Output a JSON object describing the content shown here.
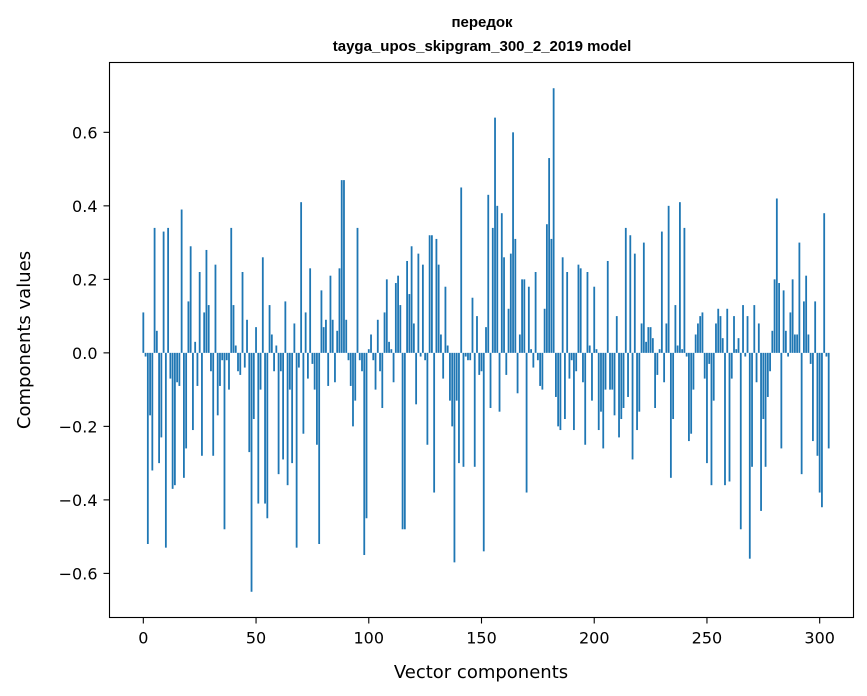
{
  "chart_data": {
    "type": "bar",
    "title_line1": "передок",
    "title_line2": "tayga_upos_skipgram_300_2_2019 model",
    "xlabel": "Vector components",
    "ylabel": "Components values",
    "xlim": [
      -15,
      315
    ],
    "ylim": [
      -0.72,
      0.79
    ],
    "xticks": [
      0,
      50,
      100,
      150,
      200,
      250,
      300
    ],
    "xtick_labels": [
      "0",
      "50",
      "100",
      "150",
      "200",
      "250",
      "300"
    ],
    "yticks": [
      -0.6,
      -0.4,
      -0.2,
      0.0,
      0.2,
      0.4,
      0.6
    ],
    "ytick_labels": [
      "−0.6",
      "−0.4",
      "−0.2",
      "0.0",
      "0.2",
      "0.4",
      "0.6"
    ],
    "bar_color": "#1f77b4",
    "values": [
      0.11,
      -0.01,
      -0.52,
      -0.17,
      -0.32,
      0.34,
      0.06,
      -0.3,
      -0.23,
      0.33,
      -0.53,
      0.34,
      -0.07,
      -0.37,
      -0.36,
      -0.08,
      -0.09,
      0.39,
      -0.34,
      -0.26,
      0.14,
      0.29,
      -0.21,
      0.03,
      -0.09,
      0.22,
      -0.28,
      0.11,
      0.28,
      0.13,
      -0.05,
      -0.28,
      0.24,
      -0.17,
      -0.09,
      -0.02,
      -0.48,
      -0.02,
      -0.1,
      0.34,
      0.13,
      0.02,
      -0.05,
      -0.06,
      0.22,
      -0.04,
      0.09,
      -0.27,
      -0.65,
      -0.18,
      0.07,
      -0.41,
      -0.1,
      0.26,
      -0.41,
      -0.45,
      0.13,
      0.05,
      -0.05,
      0.02,
      -0.33,
      -0.05,
      -0.29,
      0.14,
      -0.36,
      -0.1,
      -0.3,
      0.08,
      -0.53,
      -0.04,
      0.41,
      -0.22,
      0.11,
      -0.07,
      0.23,
      -0.03,
      -0.1,
      -0.25,
      -0.52,
      0.17,
      0.07,
      0.09,
      -0.09,
      0.21,
      0.09,
      -0.08,
      0.06,
      0.23,
      0.47,
      0.47,
      0.09,
      -0.02,
      -0.09,
      -0.2,
      -0.13,
      0.34,
      -0.02,
      -0.05,
      -0.55,
      -0.45,
      0.01,
      0.05,
      -0.02,
      -0.1,
      0.09,
      -0.05,
      -0.15,
      0.11,
      0.2,
      0.03,
      0.01,
      -0.08,
      0.19,
      0.21,
      0.13,
      -0.48,
      -0.48,
      0.25,
      0.16,
      0.29,
      0.08,
      -0.14,
      0.27,
      -0.01,
      0.24,
      -0.02,
      -0.25,
      0.32,
      0.32,
      -0.38,
      0.31,
      0.24,
      0.05,
      -0.07,
      0.18,
      0.02,
      -0.13,
      -0.2,
      -0.57,
      -0.13,
      -0.3,
      0.45,
      -0.31,
      -0.01,
      -0.02,
      -0.02,
      0.15,
      -0.31,
      0.1,
      -0.06,
      -0.05,
      -0.54,
      0.07,
      0.43,
      -0.15,
      0.34,
      0.64,
      0.4,
      -0.16,
      0.38,
      0.26,
      -0.06,
      0.12,
      0.27,
      0.6,
      0.31,
      -0.11,
      0.05,
      0.2,
      0.2,
      -0.38,
      0.18,
      0.01,
      -0.04,
      0.22,
      -0.02,
      -0.09,
      -0.1,
      0.12,
      0.35,
      0.53,
      0.31,
      0.72,
      -0.12,
      -0.2,
      -0.21,
      0.26,
      -0.18,
      0.22,
      -0.07,
      -0.02,
      -0.21,
      -0.05,
      0.24,
      0.23,
      -0.08,
      -0.25,
      0.22,
      0.02,
      -0.13,
      0.18,
      0.01,
      -0.21,
      -0.16,
      -0.26,
      -0.1,
      0.25,
      -0.1,
      -0.1,
      -0.17,
      0.1,
      -0.23,
      -0.18,
      -0.15,
      0.34,
      -0.12,
      0.32,
      -0.29,
      0.27,
      -0.21,
      -0.16,
      0.08,
      0.3,
      0.03,
      0.07,
      0.07,
      0.04,
      -0.15,
      -0.06,
      0.01,
      0.33,
      -0.08,
      0.08,
      0.4,
      -0.34,
      -0.18,
      0.13,
      0.02,
      0.41,
      0.01,
      0.34,
      -0.01,
      -0.24,
      -0.22,
      -0.1,
      0.05,
      0.08,
      0.1,
      0.11,
      -0.07,
      -0.3,
      -0.03,
      -0.36,
      -0.13,
      0.08,
      0.12,
      0.1,
      0.04,
      -0.36,
      0.12,
      -0.35,
      -0.07,
      0.1,
      0.01,
      0.04,
      -0.48,
      0.13,
      -0.01,
      0.1,
      -0.56,
      -0.31,
      0.13,
      -0.08,
      0.08,
      -0.43,
      -0.18,
      -0.31,
      -0.12,
      -0.05,
      0.06,
      0.2,
      0.42,
      0.19,
      -0.26,
      0.17,
      0.06,
      -0.01,
      0.11,
      0.2,
      0.05,
      0.05,
      0.3,
      -0.33,
      0.14,
      0.21,
      0.05,
      -0.03,
      -0.24,
      0.14,
      -0.28,
      -0.38,
      -0.42,
      0.38,
      -0.01,
      -0.26
    ]
  }
}
